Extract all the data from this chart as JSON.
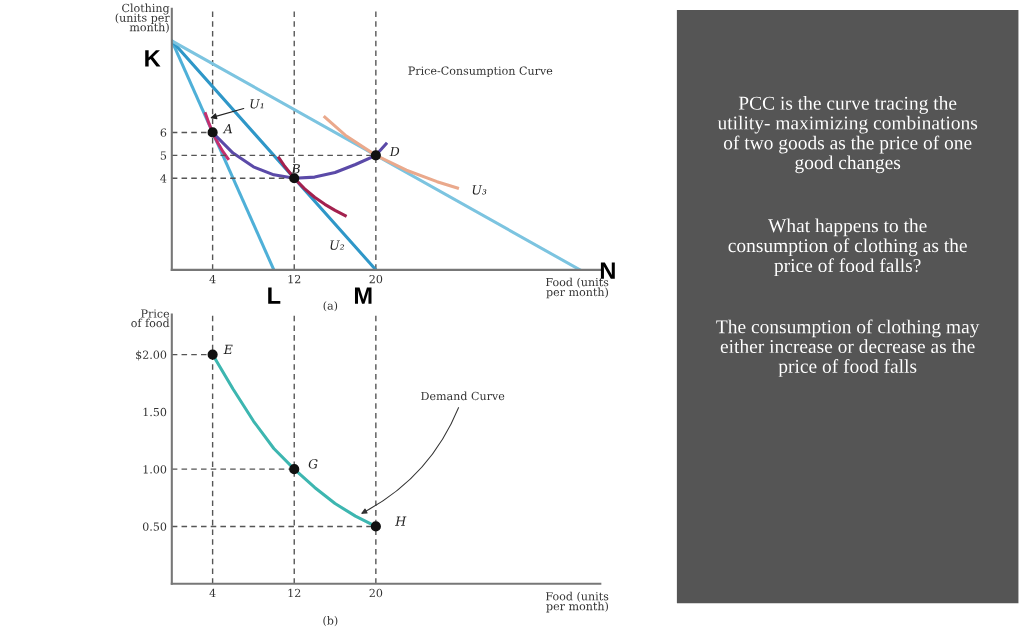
{
  "chart_data": [
    {
      "type": "line",
      "xlabel": "Food (units\nper month)",
      "ylabel": "Clothing\n(units per\nmonth)",
      "xlim": [
        0,
        42
      ],
      "ylim": [
        0,
        11.4
      ],
      "xticks": [
        4,
        12,
        20
      ],
      "yticks": [
        4,
        5,
        6
      ],
      "grid": false,
      "series": [
        {
          "type": "line",
          "color": "#4fb0d8",
          "x": [
            0,
            10
          ],
          "values": [
            10,
            0
          ]
        },
        {
          "type": "line",
          "color": "#2f97c8",
          "x": [
            0,
            20
          ],
          "values": [
            10,
            0
          ]
        },
        {
          "type": "line",
          "color": "#7cc4e0",
          "x": [
            0,
            40
          ],
          "values": [
            10,
            0
          ]
        },
        {
          "type": "line",
          "color": "#c42f6e",
          "x": [
            3.3,
            3.6,
            4,
            4.5,
            5,
            5.5
          ],
          "values": [
            6.82,
            6.44,
            6,
            5.55,
            5.17,
            4.86
          ]
        },
        {
          "type": "line",
          "color": "#a3214e",
          "x": [
            10.5,
            11,
            12,
            13,
            14,
            15,
            16,
            17
          ],
          "values": [
            4.89,
            4.56,
            4,
            3.55,
            3.17,
            2.86,
            2.6,
            2.37
          ]
        },
        {
          "type": "line",
          "color": "#eaa98c",
          "x": [
            15,
            17,
            20,
            23,
            26,
            28
          ],
          "values": [
            6.67,
            5.88,
            5,
            4.35,
            3.85,
            3.57
          ]
        },
        {
          "type": "line",
          "color": "#5b4aa8",
          "x": [
            4,
            6,
            8,
            10,
            12,
            14,
            16,
            18,
            20,
            21
          ],
          "values": [
            6,
            5.1,
            4.5,
            4.15,
            4,
            4.05,
            4.25,
            4.6,
            5,
            5.5
          ]
        },
        {
          "type": "line",
          "line_style": "dashed",
          "color": "#555555",
          "x": [
            0,
            4
          ],
          "values": [
            6,
            6
          ]
        },
        {
          "type": "line",
          "line_style": "dashed",
          "color": "#555555",
          "x": [
            0,
            20
          ],
          "values": [
            5,
            5
          ]
        },
        {
          "type": "line",
          "line_style": "dashed",
          "color": "#555555",
          "x": [
            0,
            12
          ],
          "values": [
            4,
            4
          ]
        },
        {
          "type": "scatter",
          "marker": "circle",
          "color": "#111111",
          "x": [
            4,
            12,
            20
          ],
          "values": [
            6,
            4,
            5
          ]
        }
      ],
      "ref_lines": [
        {
          "axis": "x",
          "value": 4,
          "line_style": "dashed",
          "color": "#555555"
        },
        {
          "axis": "x",
          "value": 12,
          "line_style": "dashed",
          "color": "#555555"
        },
        {
          "axis": "x",
          "value": 20,
          "line_style": "dashed",
          "color": "#555555"
        }
      ],
      "annotations": [
        {
          "text": "K",
          "x": 0,
          "y": 10
        },
        {
          "text": "L",
          "x": 10,
          "y": 0
        },
        {
          "text": "M",
          "x": 20,
          "y": 0
        },
        {
          "text": "N",
          "x": 40,
          "y": 0
        },
        {
          "text": "A",
          "x": 4,
          "y": 6
        },
        {
          "text": "B",
          "x": 12,
          "y": 4
        },
        {
          "text": "D",
          "x": 20,
          "y": 5
        },
        {
          "text": "U₁",
          "x": 3.5,
          "y": 6.6
        },
        {
          "text": "U₂",
          "x": 17,
          "y": 2.37
        },
        {
          "text": "U₃",
          "x": 28,
          "y": 3.57
        },
        "Price-Consumption Curve",
        "(a)"
      ]
    },
    {
      "type": "line",
      "xlabel": "Food (units\nper month)",
      "ylabel": "Price\nof food",
      "xlim": [
        0,
        42
      ],
      "ylim": [
        0,
        2.35
      ],
      "xticks": [
        4,
        12,
        20
      ],
      "yticks": [
        {
          "value": 0.5,
          "label": "0.50"
        },
        {
          "value": 1,
          "label": "1.00"
        },
        {
          "value": 1.5,
          "label": "1.50"
        },
        {
          "value": 2,
          "label": "$2.00"
        }
      ],
      "grid": false,
      "series": [
        {
          "type": "line",
          "color": "#3db6b0",
          "x": [
            4,
            6,
            8,
            10,
            12,
            14,
            16,
            18,
            20
          ],
          "values": [
            2,
            1.7,
            1.42,
            1.18,
            1,
            0.84,
            0.7,
            0.59,
            0.5
          ]
        },
        {
          "type": "line",
          "line_style": "dashed",
          "color": "#555555",
          "x": [
            0,
            4
          ],
          "values": [
            2,
            2
          ]
        },
        {
          "type": "line",
          "line_style": "dashed",
          "color": "#555555",
          "x": [
            0,
            12
          ],
          "values": [
            1,
            1
          ]
        },
        {
          "type": "line",
          "line_style": "dashed",
          "color": "#555555",
          "x": [
            0,
            20
          ],
          "values": [
            0.5,
            0.5
          ]
        },
        {
          "type": "scatter",
          "marker": "circle",
          "color": "#111111",
          "x": [
            4,
            12,
            20
          ],
          "values": [
            2,
            1,
            0.5
          ]
        }
      ],
      "ref_lines": [
        {
          "axis": "x",
          "value": 4,
          "line_style": "dashed",
          "color": "#555555"
        },
        {
          "axis": "x",
          "value": 12,
          "line_style": "dashed",
          "color": "#555555"
        },
        {
          "axis": "x",
          "value": 20,
          "line_style": "dashed",
          "color": "#555555"
        }
      ],
      "annotations": [
        {
          "text": "E",
          "x": 4,
          "y": 2
        },
        {
          "text": "G",
          "x": 12,
          "y": 1
        },
        {
          "text": "H",
          "x": 20,
          "y": 0.5
        },
        {
          "text": "Demand Curve",
          "x": 18.3,
          "y": 0.6
        },
        "(b)"
      ]
    },
    {
      "type": "other",
      "annotations": [
        "PCC is the curve tracing the\nutility- maximizing combinations\nof two goods as the price of one\ngood changes",
        "What happens to the\nconsumption of clothing as the\nprice of food falls?",
        "The consumption of clothing may\neither increase or decrease as the\nprice of food falls"
      ]
    }
  ]
}
